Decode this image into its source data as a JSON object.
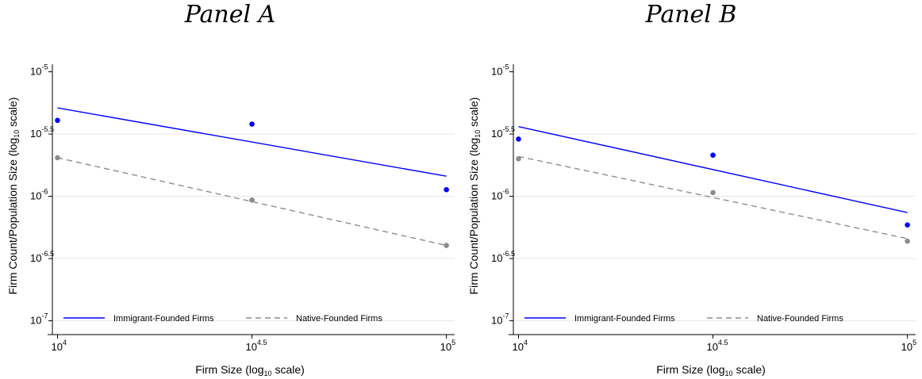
{
  "colors": {
    "immigrant": "#0000ff",
    "native": "#8c8c8c",
    "axis": "#000000",
    "grid": "#e6e6e6"
  },
  "chart_data": [
    {
      "type": "scatter",
      "title": "Panel A",
      "x_scale": "log10",
      "y_scale": "log10",
      "xlabel": {
        "main": "Firm Size (log",
        "sub": "10",
        "rest": " scale)"
      },
      "ylabel": {
        "main": "Firm Count/Population Size (log",
        "sub": "10",
        "rest": " scale)"
      },
      "xlim": [
        9700,
        105000
      ],
      "ylim": [
        8.71e-08,
        1.15e-05
      ],
      "grid": "horizontal",
      "x_ticks": [
        {
          "base": "10",
          "exp": "4",
          "value": 10000
        },
        {
          "base": "10",
          "exp": "4.5",
          "value": 31622.8
        },
        {
          "base": "10",
          "exp": "5",
          "value": 100000
        }
      ],
      "y_ticks": [
        {
          "base": "10",
          "exp": "-5",
          "value": 1e-05
        },
        {
          "base": "10",
          "exp": "-5.5",
          "value": 3.16e-06
        },
        {
          "base": "10",
          "exp": "-6",
          "value": 1e-06
        },
        {
          "base": "10",
          "exp": "-6.5",
          "value": 3.16e-07
        },
        {
          "base": "10",
          "exp": "-7",
          "value": 1e-07
        }
      ],
      "series": [
        {
          "name": "Immigrant-Founded Firms",
          "key": "immigrant",
          "dash": "",
          "x": [
            10000,
            31622.8,
            100000
          ],
          "y": [
            4.07e-06,
            3.8e-06,
            1.13e-06
          ],
          "fit": {
            "x": [
              10000,
              100000
            ],
            "y": [
              5.13e-06,
              1.45e-06
            ]
          }
        },
        {
          "name": "Native-Founded Firms",
          "key": "native",
          "dash": "7,5",
          "x": [
            10000,
            31622.8,
            100000
          ],
          "y": [
            2.04e-06,
            9.33e-07,
            4.03e-07
          ],
          "fit": {
            "x": [
              10000,
              100000
            ],
            "y": [
              2.04e-06,
              4.03e-07
            ]
          }
        }
      ]
    },
    {
      "type": "scatter",
      "title": "Panel B",
      "x_scale": "log10",
      "y_scale": "log10",
      "xlabel": {
        "main": "Firm Size (log",
        "sub": "10",
        "rest": " scale)"
      },
      "ylabel": {
        "main": "Firm Count/Population Size (log",
        "sub": "10",
        "rest": " scale)"
      },
      "xlim": [
        9700,
        105000
      ],
      "ylim": [
        8.71e-08,
        1.15e-05
      ],
      "grid": "horizontal",
      "x_ticks": [
        {
          "base": "10",
          "exp": "4",
          "value": 10000
        },
        {
          "base": "10",
          "exp": "4.5",
          "value": 31622.8
        },
        {
          "base": "10",
          "exp": "5",
          "value": 100000
        }
      ],
      "y_ticks": [
        {
          "base": "10",
          "exp": "-5",
          "value": 1e-05
        },
        {
          "base": "10",
          "exp": "-5.5",
          "value": 3.16e-06
        },
        {
          "base": "10",
          "exp": "-6",
          "value": 1e-06
        },
        {
          "base": "10",
          "exp": "-6.5",
          "value": 3.16e-07
        },
        {
          "base": "10",
          "exp": "-7",
          "value": 1e-07
        }
      ],
      "series": [
        {
          "name": "Immigrant-Founded Firms",
          "key": "immigrant",
          "dash": "",
          "x": [
            10000,
            31622.8,
            100000
          ],
          "y": [
            2.88e-06,
            2.14e-06,
            5.89e-07
          ],
          "fit": {
            "x": [
              10000,
              100000
            ],
            "y": [
              3.63e-06,
              7.4e-07
            ]
          }
        },
        {
          "name": "Native-Founded Firms",
          "key": "native",
          "dash": "7,5",
          "x": [
            10000,
            31622.8,
            100000
          ],
          "y": [
            2e-06,
            1.07e-06,
            4.36e-07
          ],
          "fit": {
            "x": [
              10000,
              100000
            ],
            "y": [
              2.09e-06,
              4.57e-07
            ]
          }
        }
      ]
    }
  ]
}
